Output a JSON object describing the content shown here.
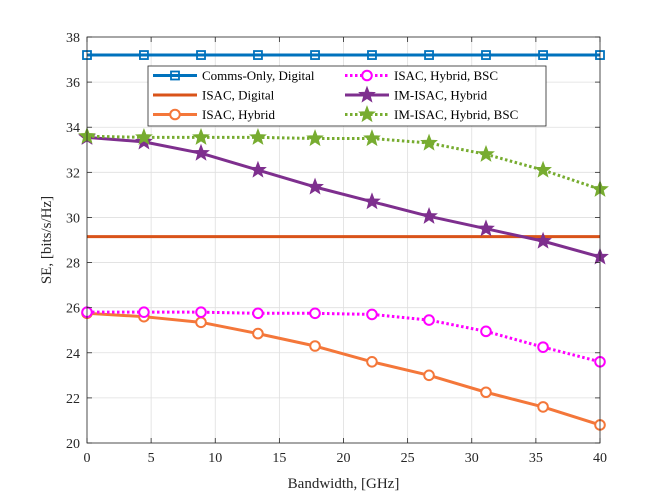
{
  "chart_data": {
    "type": "line",
    "title": "",
    "xlabel": "Bandwidth, [GHz]",
    "ylabel": "SE, [bits/s/Hz]",
    "xlim": [
      0,
      40
    ],
    "ylim": [
      20,
      38
    ],
    "xticks": [
      0,
      5,
      10,
      15,
      20,
      25,
      30,
      35,
      40
    ],
    "yticks": [
      20,
      22,
      24,
      26,
      28,
      30,
      32,
      34,
      36,
      38
    ],
    "grid": true,
    "legend_position": "top-center",
    "x": [
      0,
      4.44,
      8.89,
      13.33,
      17.78,
      22.22,
      26.67,
      31.11,
      35.56,
      40
    ],
    "series": [
      {
        "name": "Comms-Only, Digital",
        "color": "#0072BD",
        "dash": "solid",
        "marker": "square",
        "values": [
          37.2,
          37.2,
          37.2,
          37.2,
          37.2,
          37.2,
          37.2,
          37.2,
          37.2,
          37.2
        ]
      },
      {
        "name": "ISAC, Digital",
        "color": "#D95319",
        "dash": "solid",
        "marker": "none",
        "values": [
          29.15,
          29.15,
          29.15,
          29.15,
          29.15,
          29.15,
          29.15,
          29.15,
          29.15,
          29.15
        ]
      },
      {
        "name": "ISAC, Hybrid",
        "color": "#F4773A",
        "dash": "solid",
        "marker": "circle",
        "values": [
          25.75,
          25.6,
          25.35,
          24.85,
          24.3,
          23.6,
          23.0,
          22.25,
          21.6,
          20.8
        ]
      },
      {
        "name": "ISAC, Hybrid, BSC",
        "color": "#FF00FF",
        "dash": "dotted",
        "marker": "circle",
        "values": [
          25.8,
          25.8,
          25.8,
          25.75,
          25.75,
          25.7,
          25.45,
          24.95,
          24.25,
          23.6
        ]
      },
      {
        "name": "IM-ISAC, Hybrid",
        "color": "#7E2F8E",
        "dash": "solid",
        "marker": "star",
        "values": [
          33.55,
          33.35,
          32.85,
          32.1,
          31.35,
          30.7,
          30.05,
          29.5,
          28.95,
          28.25
        ]
      },
      {
        "name": "IM-ISAC, Hybrid, BSC",
        "color": "#77AC30",
        "dash": "dotted",
        "marker": "star",
        "values": [
          33.6,
          33.55,
          33.55,
          33.55,
          33.5,
          33.5,
          33.3,
          32.8,
          32.1,
          31.25
        ]
      }
    ]
  }
}
